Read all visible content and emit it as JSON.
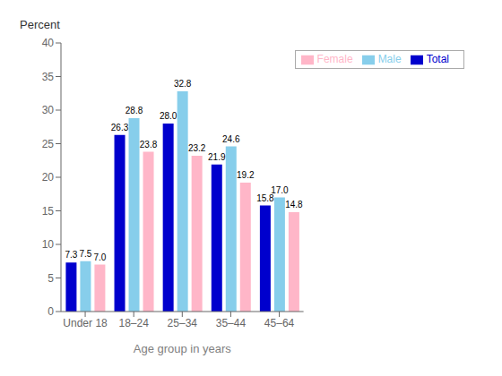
{
  "chart_data": {
    "type": "bar",
    "categories": [
      "Under 18",
      "18–24",
      "25–34",
      "35–44",
      "45–64"
    ],
    "series": [
      {
        "name": "Total",
        "color": "#0000CD",
        "values": [
          7.3,
          26.3,
          28.0,
          21.9,
          15.8
        ],
        "value_labels": [
          "7.3",
          "26.3",
          "28.0",
          "21.9",
          "15.8"
        ]
      },
      {
        "name": "Male",
        "color": "#87CEEB",
        "values": [
          7.5,
          28.8,
          32.8,
          24.6,
          17.0
        ],
        "value_labels": [
          "7.5",
          "28.8",
          "32.8",
          "24.6",
          "17.0"
        ]
      },
      {
        "name": "Female",
        "color": "#FFB6C8",
        "values": [
          7.0,
          23.8,
          23.2,
          19.2,
          14.8
        ],
        "value_labels": [
          "7.0",
          "23.8",
          "23.2",
          "19.2",
          "14.8"
        ]
      }
    ],
    "y_label": "Percent",
    "x_label": "Age group in years",
    "ylim": [
      0,
      40
    ],
    "yticks": [
      0,
      5,
      10,
      15,
      20,
      25,
      30,
      35,
      40
    ],
    "grid": false,
    "legend": "upper right",
    "data_labels": true
  }
}
